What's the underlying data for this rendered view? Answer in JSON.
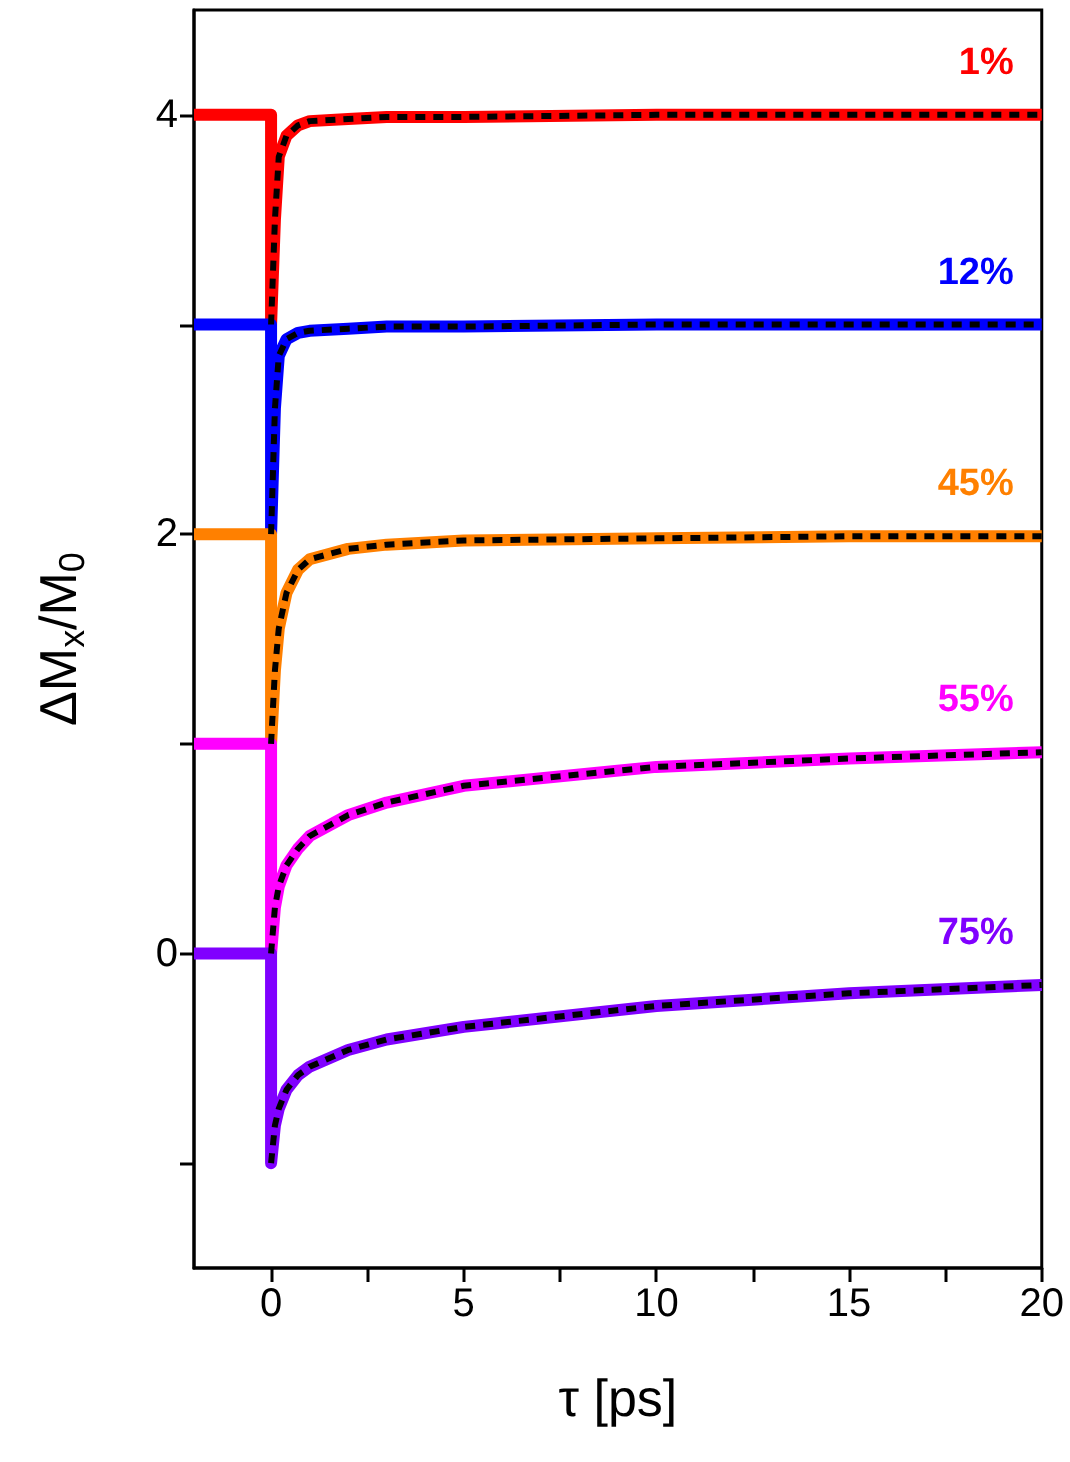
{
  "chart_data": {
    "type": "line",
    "xlabel": "τ [ps]",
    "ylabel": "ΔM$_{x}$/M$_{0}$",
    "xlim": [
      -2,
      20
    ],
    "xticks": [
      0,
      {
        "value": 2.5,
        "label": null
      },
      5,
      {
        "value": 7.5,
        "label": null
      },
      10,
      {
        "value": 12.5,
        "label": null
      },
      15,
      {
        "value": 17.5,
        "label": null
      },
      20
    ],
    "ylim": [
      -1.5,
      4.5
    ],
    "yticks": [
      {
        "value": -1,
        "label": null
      },
      0,
      {
        "value": 1,
        "label": null
      },
      2,
      {
        "value": 3,
        "label": null
      },
      4
    ],
    "grid": false,
    "legend": false,
    "marker": "none",
    "line_style": "solid",
    "series": [
      {
        "name": "1%",
        "color": "#ff0000",
        "x": [
          -2,
          0,
          0,
          0.1,
          0.2,
          0.4,
          0.7,
          1,
          2,
          3,
          5,
          10,
          15,
          20
        ],
        "values": [
          4,
          4,
          3.0,
          3.5,
          3.8,
          3.9,
          3.95,
          3.97,
          3.98,
          3.99,
          3.99,
          4.0,
          4.0,
          4.0
        ]
      },
      {
        "color": "#000000",
        "line_style": "dashed",
        "x": [
          0,
          0.1,
          0.2,
          0.4,
          0.7,
          1,
          2,
          3,
          5,
          10,
          15,
          20
        ],
        "values": [
          3.0,
          3.5,
          3.8,
          3.9,
          3.95,
          3.97,
          3.98,
          3.99,
          3.99,
          4.0,
          4.0,
          4.0
        ]
      },
      {
        "name": "12%",
        "color": "#0000ff",
        "x": [
          -2,
          0,
          0,
          0.1,
          0.2,
          0.4,
          0.7,
          1,
          2,
          3,
          5,
          10,
          15,
          20
        ],
        "values": [
          3,
          3,
          2.0,
          2.6,
          2.85,
          2.93,
          2.96,
          2.97,
          2.98,
          2.99,
          2.99,
          3.0,
          3.0,
          3.0
        ]
      },
      {
        "color": "#000000",
        "line_style": "dashed",
        "x": [
          0,
          0.1,
          0.2,
          0.4,
          0.7,
          1,
          2,
          3,
          5,
          10,
          15,
          20
        ],
        "values": [
          2.0,
          2.6,
          2.85,
          2.93,
          2.96,
          2.97,
          2.98,
          2.99,
          2.99,
          3.0,
          3.0,
          3.0
        ]
      },
      {
        "name": "45%",
        "color": "#ff8000",
        "x": [
          -2,
          0,
          0,
          0.1,
          0.2,
          0.4,
          0.7,
          1,
          2,
          3,
          5,
          10,
          15,
          20
        ],
        "values": [
          2,
          2,
          1.0,
          1.35,
          1.55,
          1.72,
          1.83,
          1.88,
          1.93,
          1.95,
          1.97,
          1.98,
          1.99,
          1.99
        ]
      },
      {
        "color": "#000000",
        "line_style": "dashed",
        "x": [
          0,
          0.1,
          0.2,
          0.4,
          0.7,
          1,
          2,
          3,
          5,
          10,
          15,
          20
        ],
        "values": [
          1.0,
          1.35,
          1.55,
          1.72,
          1.83,
          1.88,
          1.93,
          1.95,
          1.97,
          1.98,
          1.99,
          1.99
        ]
      },
      {
        "name": "55%",
        "color": "#ff00ff",
        "x": [
          -2,
          0,
          0,
          0.1,
          0.2,
          0.4,
          0.7,
          1,
          2,
          3,
          5,
          10,
          15,
          20
        ],
        "values": [
          1,
          1,
          0.0,
          0.22,
          0.32,
          0.42,
          0.5,
          0.56,
          0.66,
          0.72,
          0.8,
          0.89,
          0.93,
          0.96
        ]
      },
      {
        "color": "#000000",
        "line_style": "dashed",
        "x": [
          0,
          0.1,
          0.2,
          0.4,
          0.7,
          1,
          2,
          3,
          5,
          10,
          15,
          20
        ],
        "values": [
          0.0,
          0.22,
          0.32,
          0.42,
          0.5,
          0.56,
          0.66,
          0.72,
          0.8,
          0.89,
          0.93,
          0.96
        ]
      },
      {
        "name": "75%",
        "color": "#8000ff",
        "x": [
          -2,
          0,
          0,
          0.1,
          0.2,
          0.4,
          0.7,
          1,
          2,
          3,
          5,
          10,
          15,
          20
        ],
        "values": [
          0,
          0,
          -1.0,
          -0.82,
          -0.74,
          -0.65,
          -0.58,
          -0.54,
          -0.46,
          -0.41,
          -0.35,
          -0.25,
          -0.19,
          -0.15
        ]
      },
      {
        "color": "#000000",
        "line_style": "dashed",
        "x": [
          0,
          0.1,
          0.2,
          0.4,
          0.7,
          1,
          2,
          3,
          5,
          10,
          15,
          20
        ],
        "values": [
          -1.0,
          -0.82,
          -0.74,
          -0.65,
          -0.58,
          -0.54,
          -0.46,
          -0.41,
          -0.35,
          -0.25,
          -0.19,
          -0.15
        ]
      }
    ]
  }
}
